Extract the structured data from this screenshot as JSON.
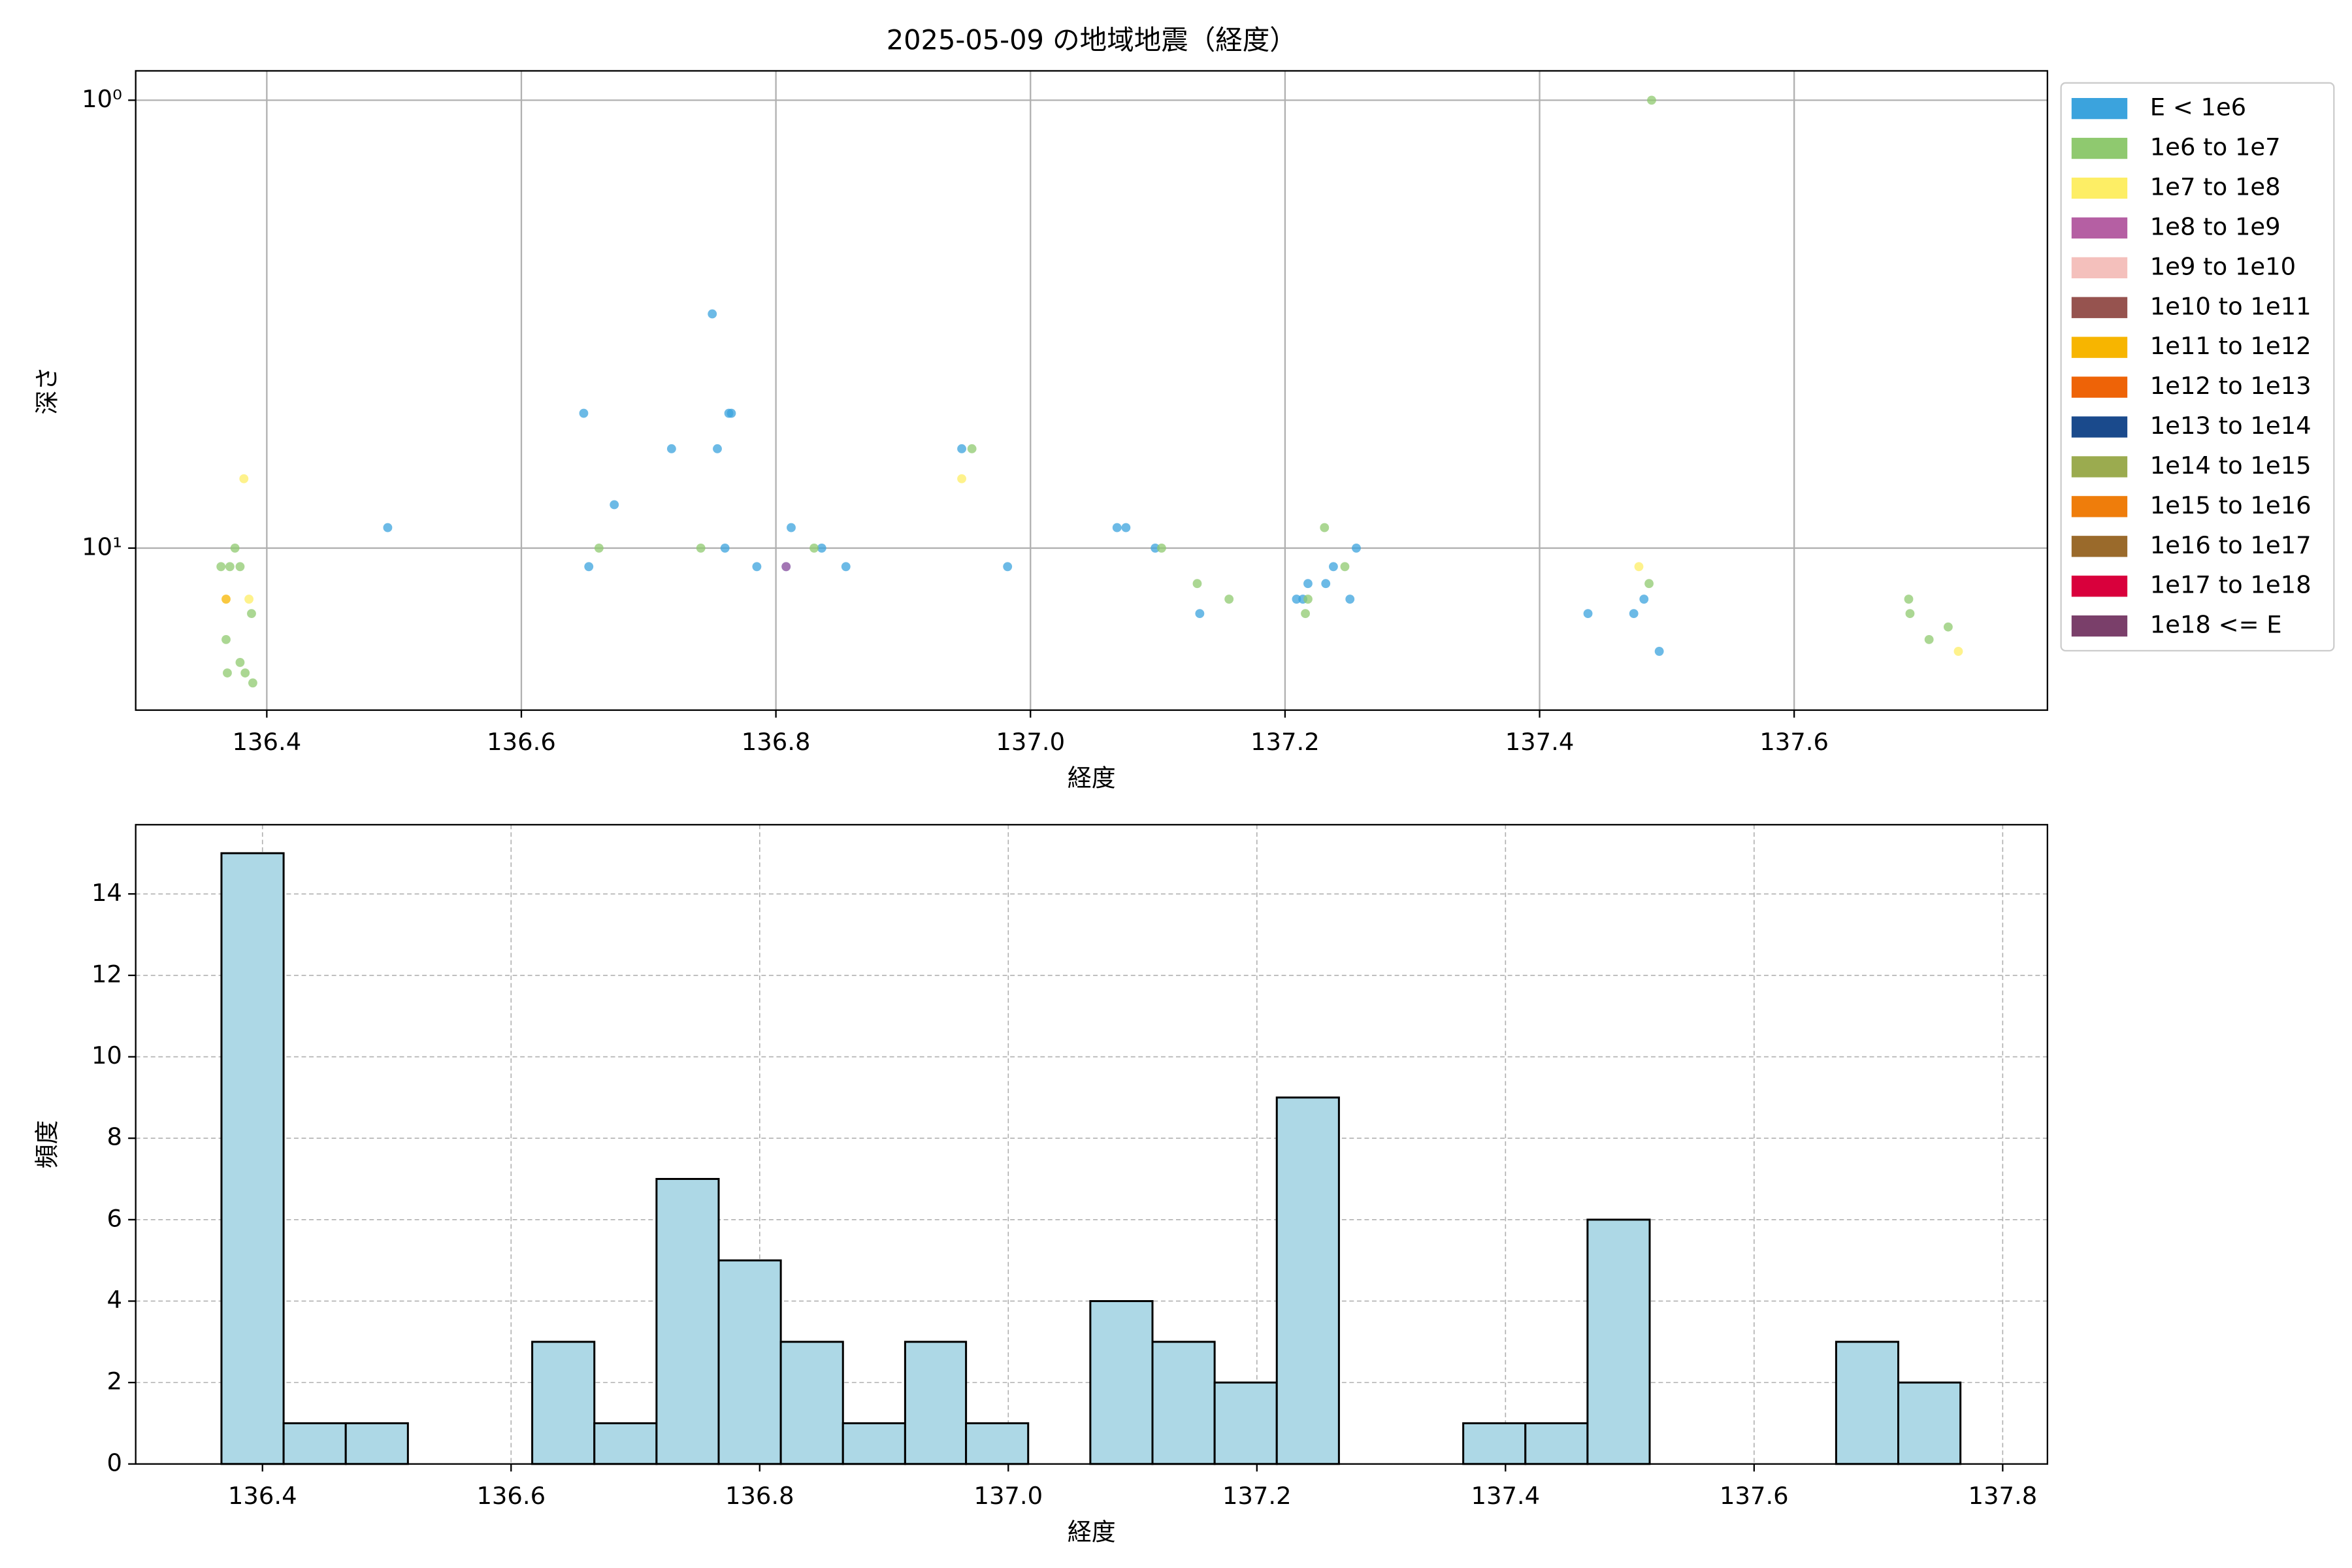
{
  "chart_data": [
    {
      "type": "scatter",
      "title": "2025-05-09 の地域地震（経度）",
      "xlabel": "経度",
      "ylabel": "深さ",
      "xlim": [
        136.297,
        137.799
      ],
      "ylim": [
        23,
        0.86
      ],
      "yscale": "log",
      "grid": true,
      "legend": "outside",
      "xticks": [
        136.4,
        136.6,
        136.8,
        {
          "value": 137,
          "label": "137.0"
        },
        137.2,
        137.4,
        137.6
      ],
      "yticks": [
        {
          "value": 1,
          "label": "10⁰"
        },
        {
          "value": 10,
          "label": "10¹"
        }
      ],
      "series": [
        {
          "name": "E < 1e6",
          "color": "#3ba3dd",
          "x": [
            136.495,
            136.649,
            136.653,
            136.673,
            136.718,
            136.75,
            136.754,
            136.763,
            136.765,
            136.76,
            136.785,
            136.808,
            136.812,
            136.836,
            136.855,
            136.946,
            136.982,
            137.068,
            137.075,
            137.098,
            137.133,
            137.209,
            137.214,
            137.218,
            137.232,
            137.238,
            137.251,
            137.256,
            137.438,
            137.474,
            137.482,
            137.494
          ],
          "values": [
            9,
            5,
            11,
            8,
            6,
            3,
            6,
            5,
            5,
            10,
            11,
            11,
            9,
            10,
            11,
            6,
            11,
            9,
            9,
            10,
            14,
            13,
            13,
            12,
            12,
            11,
            13,
            10,
            14,
            14,
            13,
            17
          ]
        },
        {
          "name": "1e6 to 1e7",
          "color": "#8fc96f",
          "x": [
            136.364,
            136.371,
            136.379,
            136.375,
            136.388,
            136.368,
            136.379,
            136.369,
            136.383,
            136.389,
            136.661,
            136.741,
            136.83,
            136.954,
            137.103,
            137.131,
            137.156,
            137.218,
            137.216,
            137.231,
            137.247,
            137.486,
            137.488,
            137.69,
            137.691,
            137.706,
            137.721
          ],
          "values": [
            11,
            11,
            11,
            10,
            14,
            16,
            18,
            19,
            19,
            20,
            10,
            10,
            10,
            6,
            10,
            12,
            13,
            13,
            14,
            9,
            11,
            12,
            1,
            13,
            14,
            16,
            15
          ]
        },
        {
          "name": "1e7 to 1e8",
          "color": "#fdee65",
          "x": [
            136.382,
            136.386,
            136.946,
            137.478,
            137.729
          ],
          "values": [
            7,
            13,
            7,
            11,
            17
          ]
        },
        {
          "name": "1e8 to 1e9",
          "color": "#b55fa3",
          "x": [
            136.808
          ],
          "values": [
            11
          ]
        },
        {
          "name": "1e9 to 1e10",
          "color": "#f4c0bc",
          "x": [],
          "values": []
        },
        {
          "name": "1e10 to 1e11",
          "color": "#96534f",
          "x": [],
          "values": []
        },
        {
          "name": "1e11 to 1e12",
          "color": "#f7b500",
          "x": [
            136.368
          ],
          "values": [
            13
          ]
        },
        {
          "name": "1e12 to 1e13",
          "color": "#ee6307",
          "x": [],
          "values": []
        },
        {
          "name": "1e13 to 1e14",
          "color": "#1a4a8c",
          "x": [],
          "values": []
        },
        {
          "name": "1e14 to 1e15",
          "color": "#9bab4f",
          "x": [],
          "values": []
        },
        {
          "name": "1e15 to 1e16",
          "color": "#ef7d0b",
          "x": [],
          "values": []
        },
        {
          "name": "1e16 to 1e17",
          "color": "#9a6a2b",
          "x": [],
          "values": []
        },
        {
          "name": "1e17 to 1e18",
          "color": "#d9003c",
          "x": [],
          "values": []
        },
        {
          "name": "1e18 <= E",
          "color": "#7a3f6a",
          "x": [],
          "values": []
        }
      ]
    },
    {
      "type": "histogram",
      "xlabel": "経度",
      "ylabel": "頻度",
      "color": "#add8e6",
      "edgecolor": "#000000",
      "grid": true,
      "xlim": [
        136.298,
        137.836
      ],
      "ylim": [
        0,
        15.7
      ],
      "xticks": [
        136.4,
        136.6,
        136.8,
        {
          "value": 137,
          "label": "137.0"
        },
        137.2,
        137.4,
        137.6,
        137.8
      ],
      "yticks": [
        0,
        2,
        4,
        6,
        8,
        10,
        12,
        14
      ],
      "bins": [
        136.367,
        136.417,
        136.467,
        136.517,
        136.567,
        136.617,
        136.667,
        136.717,
        136.767,
        136.817,
        136.867,
        136.917,
        136.966,
        137.016,
        137.066,
        137.116,
        137.166,
        137.216,
        137.266,
        137.316,
        137.366,
        137.416,
        137.466,
        137.516,
        137.566,
        137.616,
        137.666,
        137.716,
        137.766
      ],
      "values": [
        15,
        1,
        1,
        0,
        0,
        3,
        1,
        7,
        5,
        3,
        1,
        3,
        1,
        0,
        4,
        3,
        2,
        9,
        0,
        0,
        1,
        1,
        6,
        0,
        0,
        0,
        3,
        2
      ]
    }
  ]
}
